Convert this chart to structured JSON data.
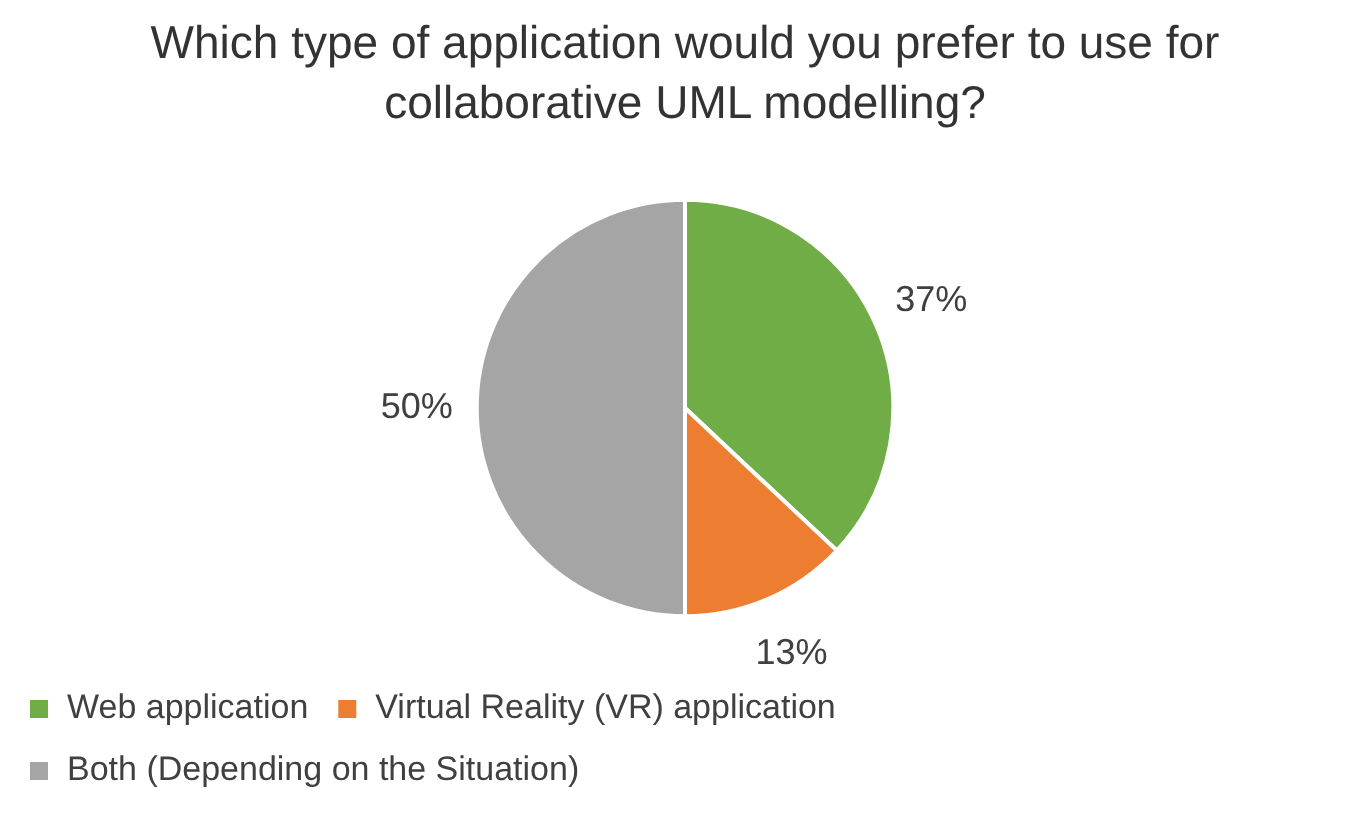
{
  "chart_data": {
    "type": "pie",
    "title": "Which type of application would you prefer to use for collaborative UML modelling?",
    "categories": [
      "Web application",
      "Virtual Reality (VR) application",
      "Both (Depending on the Situation)"
    ],
    "values": [
      37,
      13,
      50
    ],
    "colors": [
      "#70ad47",
      "#ed7d31",
      "#a5a5a5"
    ],
    "value_labels": [
      "37%",
      "13%",
      "50%"
    ],
    "legend": "bottom"
  }
}
